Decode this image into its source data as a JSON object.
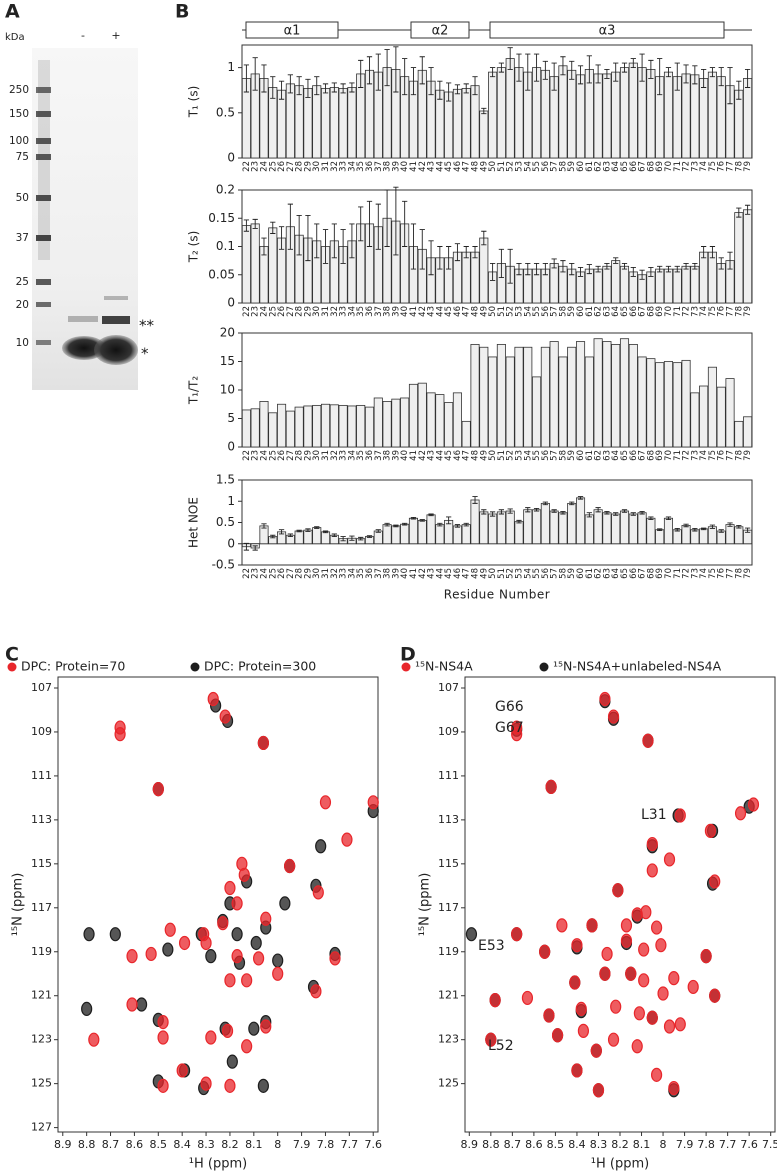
{
  "gel": {
    "panel": "A",
    "unit": "kDa",
    "lanes": [
      "-",
      "+"
    ],
    "markers": [
      250,
      150,
      100,
      75,
      50,
      37,
      25,
      20,
      10
    ],
    "annotations": [
      "**",
      "*"
    ]
  },
  "chart_data": [
    {
      "type": "bar",
      "panel": "B",
      "helices": [
        "α1",
        "α2",
        "α3"
      ],
      "ylabel": "T₁ (s)",
      "color": "#efefef",
      "categories": [
        22,
        23,
        24,
        25,
        26,
        27,
        28,
        29,
        30,
        31,
        32,
        33,
        34,
        35,
        36,
        37,
        38,
        39,
        40,
        41,
        42,
        43,
        44,
        45,
        46,
        47,
        48,
        49,
        50,
        51,
        52,
        53,
        54,
        55,
        56,
        57,
        58,
        59,
        60,
        61,
        62,
        63,
        64,
        65,
        66,
        67,
        68,
        69,
        70,
        71,
        72,
        73,
        74,
        75,
        76,
        77,
        78,
        79
      ],
      "values": [
        0.88,
        0.93,
        0.88,
        0.78,
        0.75,
        0.82,
        0.8,
        0.77,
        0.8,
        0.77,
        0.78,
        0.77,
        0.78,
        0.93,
        0.97,
        0.95,
        1.0,
        0.98,
        0.9,
        0.85,
        0.97,
        0.85,
        0.75,
        0.73,
        0.76,
        0.77,
        0.8,
        0.52,
        0.95,
        1.0,
        1.1,
        1.0,
        0.95,
        1.0,
        0.97,
        0.9,
        1.02,
        0.97,
        0.92,
        0.98,
        0.93,
        0.93,
        0.95,
        1.0,
        1.05,
        1.0,
        0.98,
        0.9,
        0.95,
        0.9,
        0.93,
        0.92,
        0.88,
        0.95,
        0.9,
        0.8,
        0.75,
        0.88
      ],
      "errors": [
        0.15,
        0.18,
        0.15,
        0.12,
        0.1,
        0.1,
        0.1,
        0.1,
        0.1,
        0.05,
        0.05,
        0.05,
        0.05,
        0.15,
        0.15,
        0.2,
        0.2,
        0.25,
        0.2,
        0.15,
        0.15,
        0.15,
        0.1,
        0.1,
        0.05,
        0.05,
        0.1,
        0.03,
        0.05,
        0.05,
        0.12,
        0.15,
        0.2,
        0.15,
        0.1,
        0.15,
        0.1,
        0.1,
        0.1,
        0.15,
        0.1,
        0.05,
        0.1,
        0.05,
        0.05,
        0.15,
        0.1,
        0.2,
        0.05,
        0.15,
        0.1,
        0.1,
        0.1,
        0.05,
        0.1,
        0.2,
        0.1,
        0.1
      ],
      "ylim": [
        0,
        1.25
      ],
      "yticks": [
        0,
        0.5,
        1
      ]
    },
    {
      "type": "bar",
      "ylabel": "T₂ (s)",
      "color": "#efefef",
      "categories": [
        22,
        23,
        24,
        25,
        26,
        27,
        28,
        29,
        30,
        31,
        32,
        33,
        34,
        35,
        36,
        37,
        38,
        39,
        40,
        41,
        42,
        43,
        44,
        45,
        46,
        47,
        48,
        49,
        50,
        51,
        52,
        53,
        54,
        55,
        56,
        57,
        58,
        59,
        60,
        61,
        62,
        63,
        64,
        65,
        66,
        67,
        68,
        69,
        70,
        71,
        72,
        73,
        74,
        75,
        76,
        77,
        78,
        79
      ],
      "values": [
        0.137,
        0.14,
        0.1,
        0.133,
        0.115,
        0.135,
        0.12,
        0.115,
        0.11,
        0.1,
        0.11,
        0.1,
        0.11,
        0.14,
        0.14,
        0.135,
        0.15,
        0.145,
        0.14,
        0.1,
        0.095,
        0.08,
        0.08,
        0.08,
        0.09,
        0.09,
        0.09,
        0.115,
        0.055,
        0.07,
        0.065,
        0.06,
        0.06,
        0.06,
        0.06,
        0.07,
        0.065,
        0.06,
        0.055,
        0.06,
        0.06,
        0.065,
        0.075,
        0.065,
        0.055,
        0.05,
        0.055,
        0.06,
        0.06,
        0.06,
        0.065,
        0.065,
        0.09,
        0.09,
        0.07,
        0.075,
        0.16,
        0.165
      ],
      "errors": [
        0.01,
        0.008,
        0.015,
        0.01,
        0.02,
        0.04,
        0.035,
        0.04,
        0.03,
        0.03,
        0.03,
        0.03,
        0.03,
        0.03,
        0.04,
        0.04,
        0.05,
        0.06,
        0.04,
        0.04,
        0.035,
        0.03,
        0.02,
        0.02,
        0.015,
        0.01,
        0.01,
        0.012,
        0.015,
        0.025,
        0.03,
        0.01,
        0.01,
        0.01,
        0.01,
        0.008,
        0.01,
        0.01,
        0.008,
        0.008,
        0.005,
        0.005,
        0.005,
        0.005,
        0.008,
        0.008,
        0.008,
        0.005,
        0.005,
        0.005,
        0.005,
        0.005,
        0.01,
        0.01,
        0.01,
        0.015,
        0.008,
        0.008
      ],
      "ylim": [
        0,
        0.2
      ],
      "yticks": [
        0,
        0.05,
        0.1,
        0.15,
        0.2
      ]
    },
    {
      "type": "bar",
      "ylabel": "T₁/T₂",
      "color": "#efefef",
      "categories": [
        22,
        23,
        24,
        25,
        26,
        27,
        28,
        29,
        30,
        31,
        32,
        33,
        34,
        35,
        36,
        37,
        38,
        39,
        40,
        41,
        42,
        43,
        44,
        45,
        46,
        47,
        48,
        49,
        50,
        51,
        52,
        53,
        54,
        55,
        56,
        57,
        58,
        59,
        60,
        61,
        62,
        63,
        64,
        65,
        66,
        67,
        68,
        69,
        70,
        71,
        72,
        73,
        74,
        75,
        76,
        77,
        78,
        79
      ],
      "values": [
        6.5,
        6.7,
        8.0,
        6.0,
        7.5,
        6.3,
        7.0,
        7.2,
        7.3,
        7.5,
        7.4,
        7.3,
        7.2,
        7.3,
        7.0,
        8.6,
        8.0,
        8.4,
        8.6,
        11.0,
        11.2,
        9.5,
        9.2,
        7.8,
        9.5,
        4.5,
        18.0,
        17.5,
        15.8,
        18.0,
        15.8,
        17.5,
        17.5,
        12.3,
        17.5,
        18.5,
        15.8,
        17.5,
        18.5,
        15.8,
        19.0,
        18.5,
        18.0,
        19.0,
        18.0,
        15.8,
        15.5,
        14.8,
        15.0,
        14.8,
        15.2,
        9.5,
        10.7,
        14.0,
        10.5,
        12.0,
        4.5,
        5.3
      ],
      "ylim": [
        0,
        20
      ],
      "yticks": [
        0,
        5,
        10,
        15,
        20
      ]
    },
    {
      "type": "bar",
      "ylabel": "Het NOE",
      "xlabel": "Residue Number",
      "color": "#efefef",
      "categories": [
        22,
        23,
        24,
        25,
        26,
        27,
        28,
        29,
        30,
        31,
        32,
        33,
        34,
        35,
        36,
        37,
        38,
        39,
        40,
        41,
        42,
        43,
        44,
        45,
        46,
        47,
        48,
        49,
        50,
        51,
        52,
        53,
        54,
        55,
        56,
        57,
        58,
        59,
        60,
        61,
        62,
        63,
        64,
        65,
        66,
        67,
        68,
        69,
        70,
        71,
        72,
        73,
        74,
        75,
        76,
        77,
        78,
        79
      ],
      "values": [
        -0.07,
        -0.1,
        0.42,
        0.17,
        0.28,
        0.2,
        0.3,
        0.32,
        0.38,
        0.28,
        0.2,
        0.12,
        0.13,
        0.12,
        0.17,
        0.3,
        0.45,
        0.42,
        0.46,
        0.6,
        0.55,
        0.68,
        0.45,
        0.55,
        0.42,
        0.45,
        1.03,
        0.75,
        0.7,
        0.75,
        0.77,
        0.52,
        0.8,
        0.8,
        0.95,
        0.77,
        0.73,
        0.95,
        1.08,
        0.68,
        0.8,
        0.73,
        0.7,
        0.77,
        0.7,
        0.73,
        0.6,
        0.33,
        0.6,
        0.33,
        0.43,
        0.33,
        0.35,
        0.4,
        0.3,
        0.45,
        0.4,
        0.32
      ],
      "errors": [
        0.08,
        0.05,
        0.05,
        0.03,
        0.05,
        0.03,
        0.02,
        0.03,
        0.02,
        0.02,
        0.03,
        0.05,
        0.05,
        0.03,
        0.02,
        0.03,
        0.03,
        0.02,
        0.02,
        0.02,
        0.02,
        0.02,
        0.03,
        0.08,
        0.03,
        0.03,
        0.08,
        0.05,
        0.05,
        0.05,
        0.05,
        0.03,
        0.05,
        0.03,
        0.03,
        0.03,
        0.03,
        0.03,
        0.03,
        0.05,
        0.05,
        0.03,
        0.03,
        0.03,
        0.03,
        0.03,
        0.03,
        0.02,
        0.03,
        0.03,
        0.03,
        0.03,
        0.02,
        0.04,
        0.03,
        0.04,
        0.03,
        0.05
      ],
      "ylim": [
        -0.5,
        1.5
      ],
      "yticks": [
        -0.5,
        0,
        0.5,
        1,
        1.5
      ]
    },
    {
      "type": "scatter",
      "panel": "C",
      "xlabel": "¹H (ppm)",
      "ylabel": "¹⁵N (ppm)",
      "xlim": [
        8.92,
        7.58
      ],
      "ylim": [
        106.5,
        127.2
      ],
      "y_inverted": true,
      "xticks": [
        8.9,
        8.8,
        8.7,
        8.6,
        8.5,
        8.4,
        8.3,
        8.2,
        8.1,
        8,
        7.9,
        7.8,
        7.7,
        7.6
      ],
      "yticks": [
        107,
        109,
        111,
        113,
        115,
        117,
        119,
        121,
        123,
        125,
        127
      ],
      "series": [
        {
          "name": "DPC: Protein=70",
          "color": "#e8262b",
          "x": [
            8.27,
            8.22,
            8.66,
            8.66,
            8.06,
            8.5,
            7.8,
            7.6,
            7.71,
            7.95,
            8.15,
            8.14,
            7.83,
            8.2,
            8.17,
            8.05,
            8.23,
            8.45,
            8.31,
            8.3,
            8.39,
            8.53,
            8.61,
            8.17,
            8.08,
            7.76,
            8.13,
            8.2,
            8.0,
            7.84,
            8.61,
            8.48,
            8.48,
            8.77,
            8.21,
            8.28,
            8.05,
            8.13,
            8.4,
            8.3,
            8.2,
            8.48
          ],
          "y": [
            107.5,
            108.3,
            108.8,
            109.1,
            109.5,
            111.6,
            112.2,
            112.2,
            113.9,
            115.1,
            115.0,
            115.5,
            116.3,
            116.1,
            116.8,
            117.5,
            117.7,
            118.0,
            118.2,
            118.6,
            118.6,
            119.1,
            119.2,
            119.2,
            119.3,
            119.3,
            120.3,
            120.3,
            120.0,
            120.8,
            121.4,
            122.2,
            122.9,
            123.0,
            122.6,
            122.9,
            122.4,
            123.3,
            124.4,
            125.0,
            125.1,
            125.1
          ]
        },
        {
          "name": "DPC: Protein=300",
          "color": "#1e1e1e",
          "x": [
            8.26,
            8.21,
            8.06,
            8.5,
            7.6,
            7.82,
            7.95,
            7.84,
            8.13,
            8.2,
            7.97,
            8.23,
            8.17,
            8.05,
            8.09,
            8.32,
            8.46,
            8.79,
            8.68,
            8.28,
            8.0,
            8.16,
            7.76,
            8.57,
            7.85,
            8.5,
            8.8,
            8.1,
            8.05,
            8.22,
            8.19,
            8.31,
            8.5,
            8.06,
            8.39
          ],
          "y": [
            107.8,
            108.5,
            109.5,
            111.6,
            112.6,
            114.2,
            115.1,
            116.0,
            115.8,
            116.8,
            116.8,
            117.6,
            118.2,
            117.9,
            118.6,
            118.2,
            118.9,
            118.2,
            118.2,
            119.2,
            119.4,
            119.5,
            119.1,
            121.4,
            120.6,
            122.1,
            121.6,
            122.5,
            122.2,
            122.5,
            124.0,
            125.2,
            124.9,
            125.1,
            124.4
          ]
        }
      ]
    },
    {
      "type": "scatter",
      "panel": "D",
      "xlabel": "¹H (ppm)",
      "ylabel": "¹⁵N (ppm)",
      "xlim": [
        8.92,
        7.48
      ],
      "ylim": [
        106.5,
        127.2
      ],
      "y_inverted": true,
      "xticks": [
        8.9,
        8.8,
        8.7,
        8.6,
        8.5,
        8.4,
        8.3,
        8.2,
        8.1,
        8,
        7.9,
        7.8,
        7.7,
        7.6,
        7.5
      ],
      "yticks": [
        107,
        109,
        111,
        113,
        115,
        117,
        119,
        121,
        123,
        125
      ],
      "annotations": [
        "G66",
        "G67",
        "L31",
        "E53",
        "L52"
      ],
      "series": [
        {
          "name": "¹⁵N-NS4A",
          "color": "#e8262b",
          "x": [
            8.27,
            8.23,
            8.68,
            8.68,
            8.07,
            8.52,
            7.58,
            7.64,
            7.92,
            7.78,
            8.05,
            7.97,
            7.76,
            8.05,
            8.21,
            8.47,
            8.33,
            8.12,
            8.17,
            8.08,
            8.03,
            8.17,
            8.09,
            8.01,
            8.26,
            8.4,
            8.55,
            8.68,
            7.8,
            8.27,
            8.15,
            8.09,
            7.95,
            8.41,
            8.63,
            8.0,
            7.86,
            7.76,
            8.78,
            8.53,
            8.38,
            8.22,
            8.11,
            8.05,
            7.97,
            8.8,
            8.49,
            8.37,
            8.23,
            8.31,
            8.12,
            7.92,
            8.4,
            8.3,
            7.95,
            8.03
          ],
          "y": [
            107.5,
            108.3,
            108.8,
            109.1,
            109.4,
            111.5,
            112.3,
            112.7,
            112.8,
            113.5,
            114.1,
            114.8,
            115.8,
            115.3,
            116.2,
            117.8,
            117.8,
            117.3,
            117.8,
            117.2,
            117.9,
            118.5,
            118.9,
            118.7,
            119.1,
            118.7,
            119.0,
            118.2,
            119.2,
            120.0,
            120.0,
            120.3,
            120.2,
            120.4,
            121.1,
            120.9,
            120.6,
            121.0,
            121.2,
            121.9,
            121.6,
            121.5,
            121.8,
            122.0,
            122.4,
            123.0,
            122.8,
            122.6,
            123.0,
            123.5,
            123.3,
            122.3,
            124.4,
            125.3,
            125.2,
            124.6
          ]
        },
        {
          "name": "¹⁵N-NS4A+unlabeled-NS4A",
          "color": "#1e1e1e",
          "x": [
            8.27,
            8.23,
            8.68,
            8.07,
            8.52,
            7.6,
            7.93,
            7.77,
            8.05,
            7.77,
            8.21,
            8.33,
            8.12,
            8.17,
            8.89,
            8.68,
            8.55,
            8.4,
            7.8,
            8.27,
            8.15,
            8.41,
            7.76,
            8.78,
            8.53,
            8.38,
            8.05,
            8.8,
            8.49,
            8.31,
            8.4,
            8.3,
            7.95
          ],
          "y": [
            107.6,
            108.4,
            108.9,
            109.4,
            111.5,
            112.4,
            112.8,
            113.5,
            114.2,
            115.9,
            116.2,
            117.8,
            117.4,
            118.6,
            118.2,
            118.2,
            119.0,
            118.8,
            119.2,
            120.0,
            120.0,
            120.4,
            121.0,
            121.2,
            121.9,
            121.7,
            122.0,
            123.0,
            122.8,
            123.5,
            124.4,
            125.3,
            125.3
          ]
        }
      ]
    }
  ]
}
